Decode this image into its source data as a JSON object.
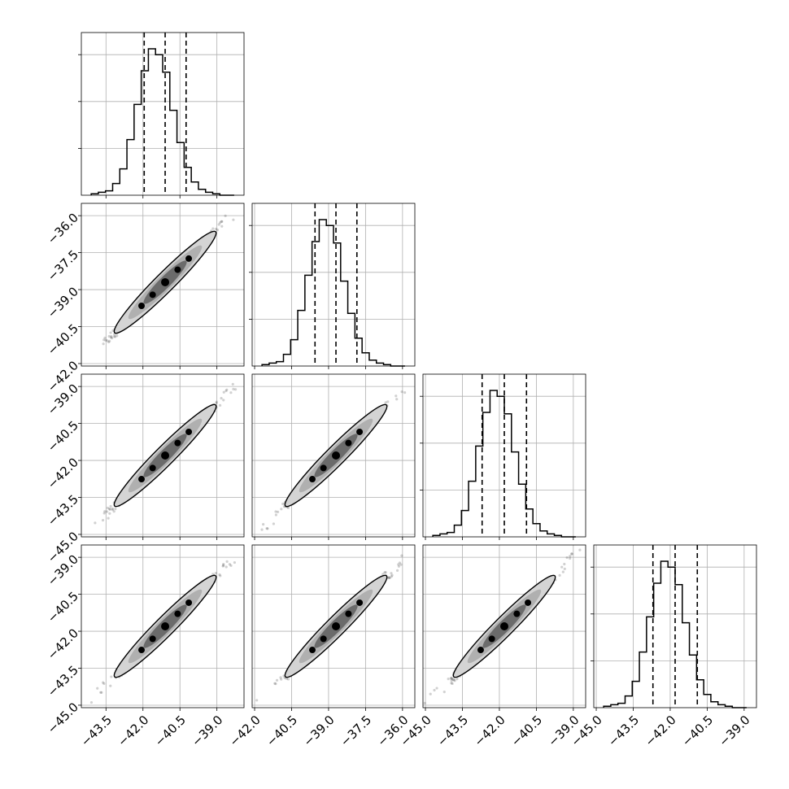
{
  "chart_data": {
    "type": "corner",
    "title": "",
    "n_params": 4,
    "colors": {
      "line": "#000000",
      "grid": "#b0b0b0",
      "background": "#ffffff"
    },
    "params": [
      {
        "center": -41.1,
        "q16": -41.95,
        "q84": -40.25,
        "range": [
          -44.5,
          -37.9
        ],
        "ticks": [
          -43.5,
          -42.0,
          -40.5,
          -39.0
        ],
        "tick_labels": [
          "−43.5",
          "−42.0",
          "−40.5",
          "−39.0"
        ]
      },
      {
        "center": -38.7,
        "q16": -39.55,
        "q84": -37.85,
        "range": [
          -42.1,
          -35.5
        ],
        "ticks": [
          -42.0,
          -40.5,
          -39.0,
          -37.5,
          -36.0
        ],
        "tick_labels": [
          "−42.0",
          "−40.5",
          "−39.0",
          "−37.5",
          "−36.0"
        ]
      },
      {
        "center": -41.8,
        "q16": -42.7,
        "q84": -40.9,
        "range": [
          -45.1,
          -38.5
        ],
        "ticks": [
          -45.0,
          -43.5,
          -42.0,
          -40.5,
          -39.0
        ],
        "tick_labels": [
          "−45.0",
          "−43.5",
          "−42.0",
          "−40.5",
          "−39.0"
        ]
      },
      {
        "center": -41.8,
        "q16": -42.7,
        "q84": -40.9,
        "range": [
          -45.1,
          -38.5
        ],
        "ticks": [
          -45.0,
          -43.5,
          -42.0,
          -40.5,
          -39.0
        ],
        "tick_labels": [
          "−45.0",
          "−43.5",
          "−42.0",
          "−40.5",
          "−39.0"
        ]
      }
    ],
    "histogram_bins": 20,
    "histogram_counts": [
      1,
      2,
      3,
      8,
      18,
      38,
      62,
      85,
      100,
      96,
      84,
      58,
      36,
      19,
      9,
      4,
      2,
      1,
      0,
      0
    ],
    "hist_y_ticks_fraction": [
      0.32,
      0.64,
      0.96
    ],
    "grid": true,
    "contour_levels": [
      "0.5",
      "1.0",
      "1.5",
      "2.0"
    ]
  }
}
